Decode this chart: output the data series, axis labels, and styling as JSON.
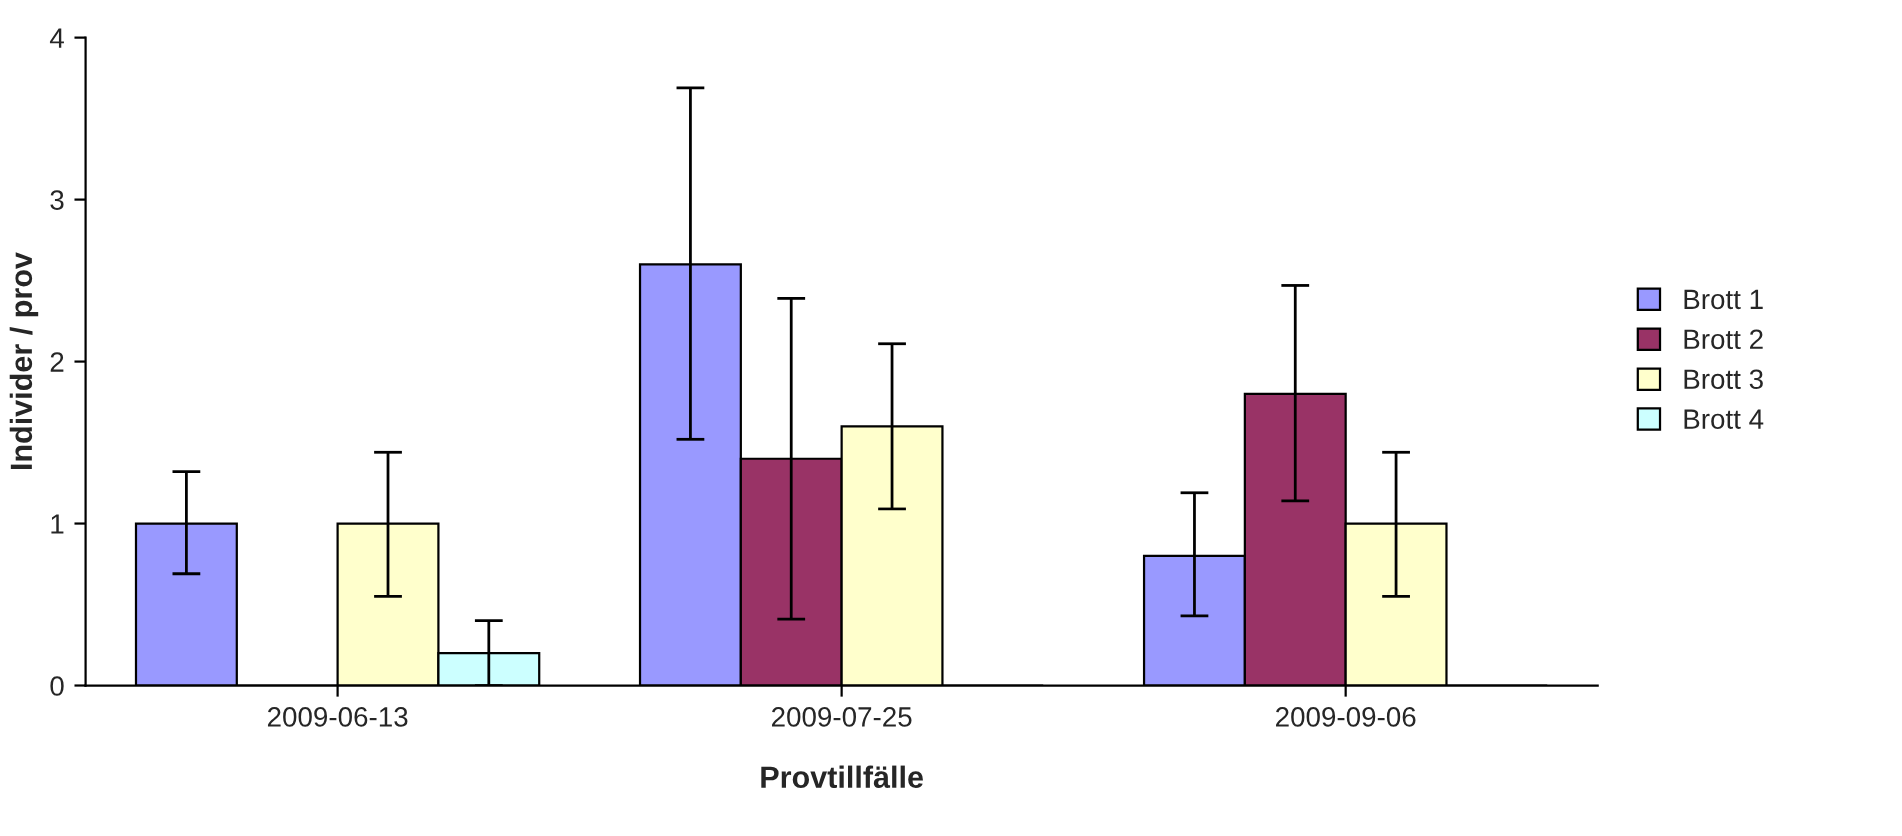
{
  "chart_data": {
    "type": "bar",
    "xlabel": "Provtillfälle",
    "ylabel": "Individer / prov",
    "categories": [
      "2009-06-13",
      "2009-07-25",
      "2009-09-06"
    ],
    "series": [
      {
        "name": "Brott 1",
        "color": "#9999ff",
        "values": [
          1.0,
          2.6,
          0.8
        ],
        "errors": [
          [
            0.69,
            1.32
          ],
          [
            1.52,
            3.69
          ],
          [
            0.43,
            1.19
          ]
        ]
      },
      {
        "name": "Brott 2",
        "color": "#993366",
        "values": [
          0,
          1.4,
          1.8
        ],
        "errors": [
          null,
          [
            0.41,
            2.39
          ],
          [
            1.14,
            2.47
          ]
        ]
      },
      {
        "name": "Brott 3",
        "color": "#ffffcc",
        "values": [
          1.0,
          1.6,
          1.0
        ],
        "errors": [
          [
            0.55,
            1.44
          ],
          [
            1.09,
            2.11
          ],
          [
            0.55,
            1.44
          ]
        ]
      },
      {
        "name": "Brott 4",
        "color": "#ccffff",
        "values": [
          0.2,
          0,
          0
        ],
        "errors": [
          [
            0.0,
            0.4
          ],
          null,
          null
        ]
      }
    ],
    "ylim": [
      0,
      4
    ],
    "yticks": [
      0,
      1,
      2,
      3,
      4
    ],
    "grid": false,
    "legend": "right"
  }
}
